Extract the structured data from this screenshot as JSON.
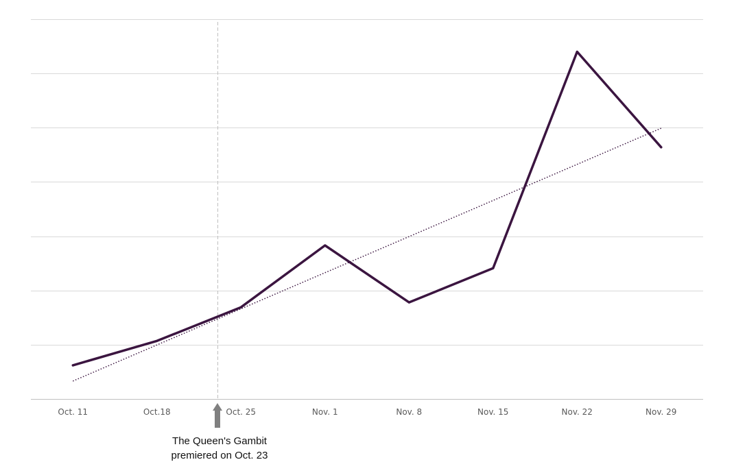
{
  "chart_data": {
    "type": "line",
    "title": "",
    "xlabel": "",
    "ylabel": "",
    "categories": [
      "Oct. 11",
      "Oct.18",
      "Oct. 25",
      "Nov. 1",
      "Nov. 8",
      "Nov. 15",
      "Nov. 22",
      "Nov. 29"
    ],
    "series": [
      {
        "values": [
          0.62,
          1.07,
          1.69,
          2.83,
          1.78,
          2.41,
          6.4,
          4.64
        ]
      }
    ],
    "trendline": {
      "style": "dotted",
      "start": 0.33,
      "end": 4.99
    },
    "ylim": [
      0,
      7
    ],
    "y_tick_count": 8,
    "y_tick_labels_shown": false,
    "grid": true,
    "legend": "none",
    "colors": {
      "line": "#3b1540",
      "grid": "#d9d9d9",
      "axis": "#bfbfbf",
      "marker": "#bfbfbf",
      "arrow": "#808080"
    },
    "annotation": {
      "marker_between": [
        "Oct.18",
        "Oct. 25"
      ],
      "marker_fraction": 0.72,
      "lines": [
        "The Queen's Gambit",
        "premiered on Oct. 23"
      ]
    }
  }
}
